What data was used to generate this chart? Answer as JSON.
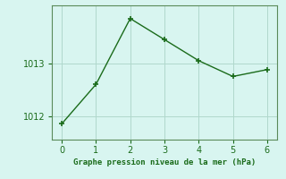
{
  "x": [
    0,
    1,
    2,
    3,
    4,
    5,
    6
  ],
  "y": [
    1011.85,
    1012.6,
    1013.85,
    1013.45,
    1013.05,
    1012.75,
    1012.88
  ],
  "line_color": "#1a6b1a",
  "marker_color": "#1a6b1a",
  "background_color": "#d8f5f0",
  "grid_color": "#b0d8cc",
  "xlabel": "Graphe pression niveau de la mer (hPa)",
  "xlabel_color": "#1a6b1a",
  "tick_label_color": "#1a6b1a",
  "spine_color": "#5a8a5a",
  "xlim": [
    -0.3,
    6.3
  ],
  "ylim": [
    1011.55,
    1014.1
  ],
  "yticks": [
    1012,
    1013
  ],
  "xticks": [
    0,
    1,
    2,
    3,
    4,
    5,
    6
  ]
}
